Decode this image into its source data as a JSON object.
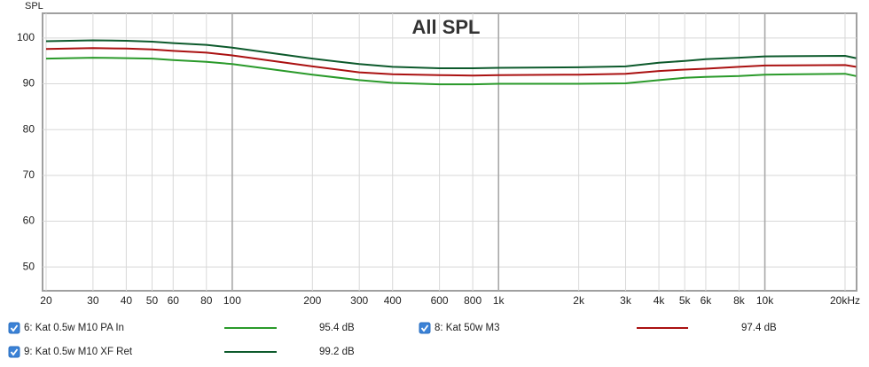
{
  "chart_data": {
    "type": "line",
    "title": "All SPL",
    "y_label": "SPL",
    "log_x": true,
    "grid": true,
    "xlim": [
      19.4,
      22100
    ],
    "ylim": [
      44.8,
      105.4
    ],
    "xticks": [
      20,
      30,
      40,
      50,
      60,
      80,
      100,
      200,
      300,
      400,
      600,
      800,
      {
        "value": 1000,
        "label": "1k"
      },
      {
        "value": 2000,
        "label": "2k"
      },
      {
        "value": 3000,
        "label": "3k"
      },
      {
        "value": 4000,
        "label": "4k"
      },
      {
        "value": 5000,
        "label": "5k"
      },
      {
        "value": 6000,
        "label": "6k"
      },
      {
        "value": 8000,
        "label": "8k"
      },
      {
        "value": 10000,
        "label": "10k"
      },
      {
        "value": 20000,
        "label": "20kHz"
      }
    ],
    "yticks": [
      50,
      60,
      70,
      80,
      90,
      100
    ],
    "x": [
      20,
      30,
      40,
      50,
      60,
      80,
      100,
      200,
      300,
      400,
      600,
      800,
      1000,
      2000,
      3000,
      4000,
      5000,
      6000,
      8000,
      10000,
      20000,
      22000
    ],
    "series": [
      {
        "name": "6: Kat 0.5w M10 PA In",
        "color": "#2a9a2a",
        "legend_value": "95.4 dB",
        "values": [
          95.5,
          95.7,
          95.6,
          95.5,
          95.2,
          94.8,
          94.3,
          92.0,
          90.8,
          90.2,
          89.9,
          89.9,
          90.0,
          90.0,
          90.1,
          90.8,
          91.3,
          91.5,
          91.7,
          92.0,
          92.2,
          91.7
        ]
      },
      {
        "name": "8: Kat 50w M3",
        "color": "#aa1111",
        "legend_value": "97.4 dB",
        "values": [
          97.6,
          97.8,
          97.7,
          97.5,
          97.2,
          96.8,
          96.2,
          93.8,
          92.5,
          92.1,
          91.9,
          91.8,
          91.9,
          92.0,
          92.2,
          92.8,
          93.1,
          93.3,
          93.7,
          94.0,
          94.1,
          93.7
        ]
      },
      {
        "name": "9: Kat 0.5w M10 XF Ret",
        "color": "#0d5a2c",
        "legend_value": "99.2 dB",
        "values": [
          99.3,
          99.5,
          99.4,
          99.2,
          98.9,
          98.5,
          97.9,
          95.5,
          94.3,
          93.7,
          93.4,
          93.4,
          93.5,
          93.6,
          93.8,
          94.6,
          95.0,
          95.4,
          95.7,
          96.0,
          96.1,
          95.6
        ]
      }
    ]
  }
}
